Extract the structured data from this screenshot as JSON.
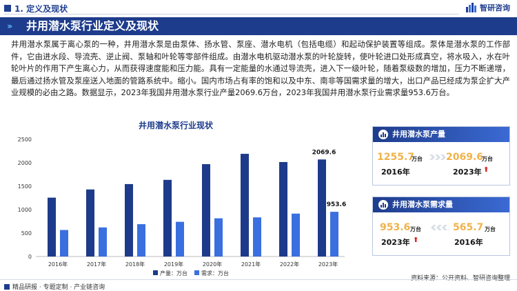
{
  "header": {
    "section_title": "1. 定义及现状",
    "brand_name": "智研咨询"
  },
  "banner": {
    "title": "井用潜水泵行业定义及现状"
  },
  "body_text": "井用潜水泵属于离心泵的一种，井用潜水泵是由泵体、扬水管、泵座、潜水电机（包括电缆）和起动保护装置等组成。泵体是潜水泵的工作部件，它由进水段、导流壳、逆止阀、泵轴和叶轮等零部件组成。由潜水电机驱动潜水泵的叶轮旋转，使叶轮进口处形成真空，将水吸入，水在叶轮叶片的作用下产生离心力，从而获得速度能和压力能。具有一定能量的水通过导流壳，进入下一级叶轮，随着泵级数的增加，压力不断递增，最后通过扬水管及泵座送入地面的管路系统中。缩小。国内市场占有率的饱和以及中东、南非等国需求量的增大，出口产品已经成为泵企扩大产业规模的必由之路。数据显示，2023年我国井用潜水泵行业产量2069.6万台，2023年我国井用潜水泵行业需求量953.6万台。",
  "chart_data": {
    "type": "bar",
    "title": "井用潜水泵行业现状",
    "categories": [
      "2016年",
      "2017年",
      "2018年",
      "2019年",
      "2020年",
      "2021年",
      "2022年",
      "2023年"
    ],
    "series": [
      {
        "name": "产量：万台",
        "color": "#1e3a8a",
        "values": [
          1255.7,
          1430,
          1545,
          1635,
          1970,
          2190,
          2015,
          2069.6
        ]
      },
      {
        "name": "需求：万台",
        "color": "#3a6fe0",
        "values": [
          565.7,
          620,
          690,
          740,
          815,
          835,
          915,
          953.6
        ]
      }
    ],
    "ylim": [
      0,
      2500
    ],
    "yticks": [
      0,
      500,
      1000,
      1500,
      2000,
      2500
    ],
    "data_labels": {
      "production_last": "2069.6",
      "demand_last": "953.6"
    },
    "legend_position": "bottom",
    "grid": false
  },
  "cards": {
    "production": {
      "title": "井用潜水泵产量",
      "old_value": "1255.7",
      "old_unit": "万台",
      "old_year": "2016年",
      "new_value": "2069.6",
      "new_unit": "万台",
      "new_year": "2023年"
    },
    "demand": {
      "title": "井用潜水泵需求量",
      "new_value": "953.6",
      "new_unit": "万台",
      "new_year": "2023年",
      "old_value": "565.7",
      "old_unit": "万台",
      "old_year": "2016年"
    }
  },
  "footer": {
    "left_text": "精品研报 · 专题定制 · 产业链咨询",
    "source": "资料来源：公开资料、智研咨询整理"
  },
  "colors": {
    "primary": "#1e3c8c",
    "accent": "#3a6fe0",
    "highlight": "#f0b24a",
    "up_arrow": "#e02020"
  },
  "icons": {
    "brand": "brand-logo-icon",
    "card": "bar-chart-icon",
    "trend_up": "up-arrow-icon",
    "trend": "right-arrow-icon"
  }
}
